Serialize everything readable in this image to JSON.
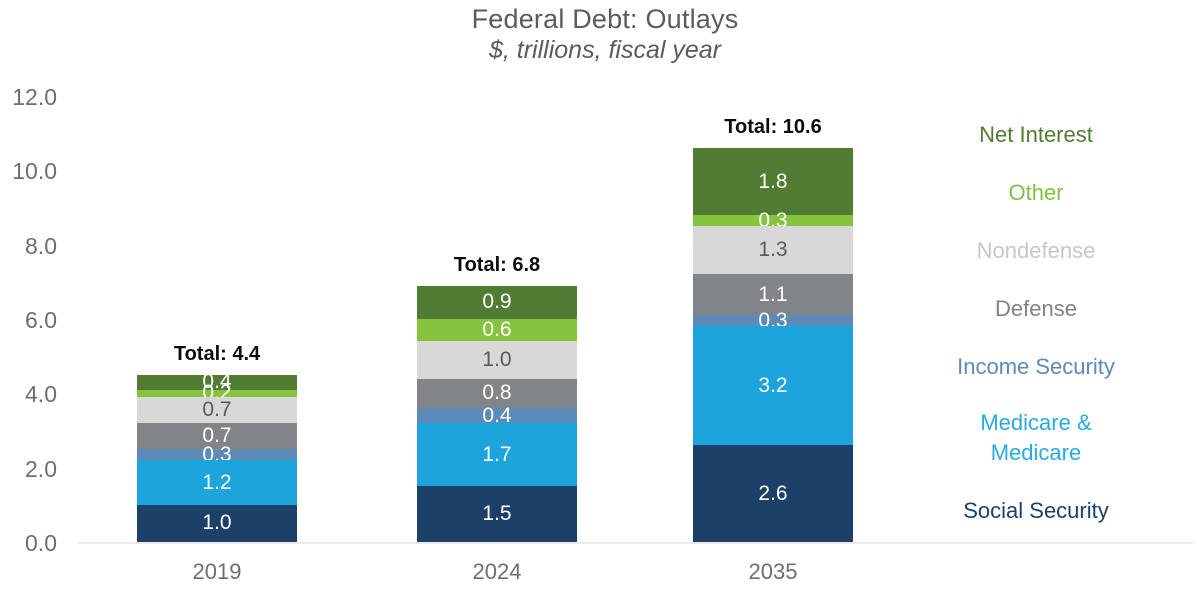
{
  "title": "Federal Debt: Outlays",
  "subtitle": "$, trillions, fiscal year",
  "chart_data": {
    "type": "bar",
    "stacked": true,
    "title": "Federal Debt: Outlays",
    "subtitle": "$, trillions, fiscal year",
    "categories": [
      "2019",
      "2024",
      "2035"
    ],
    "series": [
      {
        "name": "Social Security",
        "color": "#1d4069",
        "label_color": "#ffffff",
        "values": [
          1.0,
          1.5,
          2.6
        ]
      },
      {
        "name": "Medicare & Medicare",
        "color": "#1da4dc",
        "label_color": "#ffffff",
        "values": [
          1.2,
          1.7,
          3.2
        ]
      },
      {
        "name": "Income Security",
        "color": "#5d8bb8",
        "label_color": "#ffffff",
        "values": [
          0.3,
          0.4,
          0.3
        ]
      },
      {
        "name": "Defense",
        "color": "#818588",
        "label_color": "#ffffff",
        "values": [
          0.7,
          0.8,
          1.1
        ]
      },
      {
        "name": "Nondefense",
        "color": "#d8d8d8",
        "label_color": "#595959",
        "values": [
          0.7,
          1.0,
          1.3
        ]
      },
      {
        "name": "Other",
        "color": "#86c440",
        "label_color": "#ffffff",
        "values": [
          0.2,
          0.6,
          0.3
        ]
      },
      {
        "name": "Net Interest",
        "color": "#527c33",
        "label_color": "#ffffff",
        "values": [
          0.4,
          0.9,
          1.8
        ]
      }
    ],
    "totals": [
      "Total: 4.4",
      "Total: 6.8",
      "Total: 10.6"
    ],
    "y_ticks": [
      "12.0",
      "10.0",
      "8.0",
      "6.0",
      "4.0",
      "2.0",
      "0.0"
    ],
    "ylim": [
      0,
      12
    ],
    "grid": false,
    "legend_position": "right",
    "legend": [
      {
        "label": "Net Interest",
        "color": "#527c33"
      },
      {
        "label": "Other",
        "color": "#7ec241"
      },
      {
        "label": "Nondefense",
        "color": "#c6c7c9"
      },
      {
        "label": "Defense",
        "color": "#808285"
      },
      {
        "label": "Income Security",
        "color": "#5d8bb8"
      },
      {
        "label": "Medicare &\nMedicare",
        "color": "#29abe2"
      },
      {
        "label": "Social Security",
        "color": "#1d4069"
      }
    ]
  }
}
